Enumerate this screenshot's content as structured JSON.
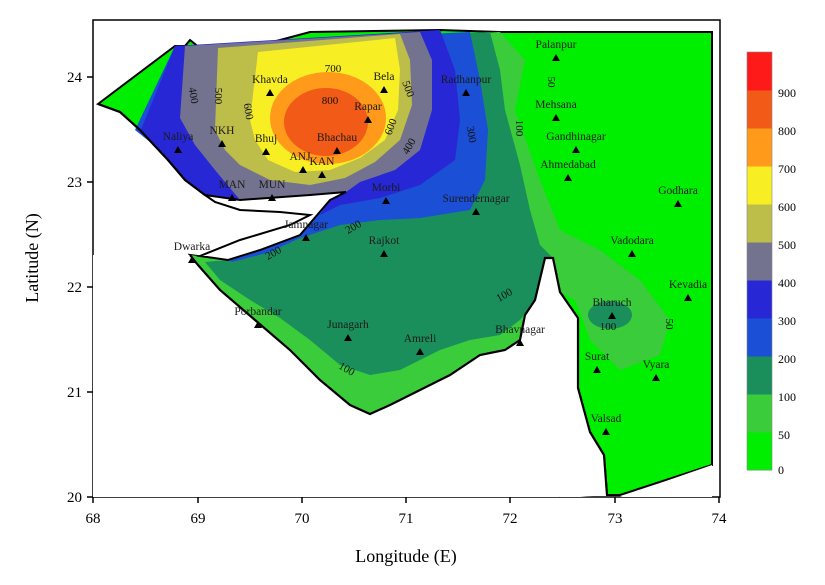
{
  "map": {
    "xlabel": "Longitude (E)",
    "ylabel": "Latitude (N)",
    "x_ticks": [
      "68",
      "69",
      "70",
      "71",
      "72",
      "73",
      "74"
    ],
    "y_ticks": [
      "20",
      "21",
      "22",
      "23",
      "24"
    ]
  },
  "legend": {
    "levels": [
      "0",
      "50",
      "100",
      "200",
      "300",
      "400",
      "500",
      "600",
      "700",
      "800",
      "900"
    ],
    "colors": [
      "#00ee00",
      "#3bcc3b",
      "#1a8f5c",
      "#1a4fd6",
      "#2727d6",
      "#737390",
      "#bdbd4a",
      "#f7ef24",
      "#ff9a1a",
      "#f25a17",
      "#ff1a1a"
    ]
  },
  "stations": [
    "Palanpur",
    "Bela",
    "Khavda",
    "Radhanpur",
    "Mehsana",
    "Rapar",
    "Naliya",
    "NKH",
    "Bhuj",
    "Bhachau",
    "Gandhinagar",
    "ANJ",
    "KAN",
    "Ahmedabad",
    "MAN",
    "MUN",
    "Morbi",
    "Godhara",
    "Surendernagar",
    "Jamnagar",
    "Dwarka",
    "Rajkot",
    "Vadodara",
    "Kevadia",
    "Bharuch",
    "Porbandar",
    "Junagarh",
    "Bhavnagar",
    "Amreli",
    "Surat",
    "Vyara",
    "Valsad"
  ],
  "contour_labels": [
    "700",
    "800",
    "500",
    "400",
    "500",
    "600",
    "600",
    "400",
    "300",
    "100",
    "50",
    "200",
    "200",
    "100",
    "100",
    "100",
    "50"
  ]
}
